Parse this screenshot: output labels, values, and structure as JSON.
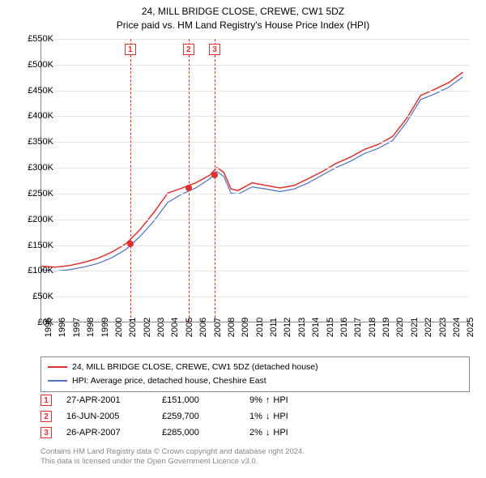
{
  "title_line1": "24, MILL BRIDGE CLOSE, CREWE, CW1 5DZ",
  "title_line2": "Price paid vs. HM Land Registry's House Price Index (HPI)",
  "chart": {
    "type": "line",
    "xlim": [
      1995,
      2025.5
    ],
    "ylim": [
      0,
      550
    ],
    "ytick_step": 50,
    "y_prefix": "£",
    "y_suffix": "K",
    "xticks": [
      1995,
      1996,
      1997,
      1998,
      1999,
      2000,
      2001,
      2002,
      2003,
      2004,
      2005,
      2006,
      2007,
      2008,
      2009,
      2010,
      2011,
      2012,
      2013,
      2014,
      2015,
      2016,
      2017,
      2018,
      2019,
      2020,
      2021,
      2022,
      2023,
      2024,
      2025
    ],
    "grid_color": "#e8e8e8",
    "axis_color": "#888888",
    "background_color": "#ffffff",
    "series": [
      {
        "name": "property",
        "label": "24, MILL BRIDGE CLOSE, CREWE, CW1 5DZ (detached house)",
        "color": "#e03030",
        "line_width": 1.5,
        "data": [
          [
            1995,
            108
          ],
          [
            1996,
            106
          ],
          [
            1997,
            109
          ],
          [
            1998,
            115
          ],
          [
            1999,
            123
          ],
          [
            2000,
            135
          ],
          [
            2001,
            151
          ],
          [
            2002,
            178
          ],
          [
            2003,
            212
          ],
          [
            2004,
            250
          ],
          [
            2005,
            259.7
          ],
          [
            2006,
            270
          ],
          [
            2007,
            285
          ],
          [
            2007.5,
            300
          ],
          [
            2008,
            290
          ],
          [
            2008.5,
            258
          ],
          [
            2009,
            255
          ],
          [
            2010,
            270
          ],
          [
            2011,
            265
          ],
          [
            2012,
            260
          ],
          [
            2013,
            265
          ],
          [
            2014,
            278
          ],
          [
            2015,
            292
          ],
          [
            2016,
            308
          ],
          [
            2017,
            320
          ],
          [
            2018,
            335
          ],
          [
            2019,
            345
          ],
          [
            2020,
            360
          ],
          [
            2021,
            395
          ],
          [
            2022,
            440
          ],
          [
            2023,
            452
          ],
          [
            2024,
            465
          ],
          [
            2025,
            485
          ]
        ]
      },
      {
        "name": "hpi",
        "label": "HPI: Average price, detached house, Cheshire East",
        "color": "#5070c0",
        "line_width": 1.2,
        "data": [
          [
            1995,
            101
          ],
          [
            1996,
            98
          ],
          [
            1997,
            101
          ],
          [
            1998,
            106
          ],
          [
            1999,
            113
          ],
          [
            2000,
            124
          ],
          [
            2001,
            140
          ],
          [
            2002,
            165
          ],
          [
            2003,
            195
          ],
          [
            2004,
            232
          ],
          [
            2005,
            248
          ],
          [
            2006,
            260
          ],
          [
            2007,
            278
          ],
          [
            2007.5,
            292
          ],
          [
            2008,
            282
          ],
          [
            2008.5,
            250
          ],
          [
            2009,
            248
          ],
          [
            2010,
            262
          ],
          [
            2011,
            258
          ],
          [
            2012,
            253
          ],
          [
            2013,
            258
          ],
          [
            2014,
            270
          ],
          [
            2015,
            285
          ],
          [
            2016,
            300
          ],
          [
            2017,
            312
          ],
          [
            2018,
            327
          ],
          [
            2019,
            337
          ],
          [
            2020,
            352
          ],
          [
            2021,
            388
          ],
          [
            2022,
            432
          ],
          [
            2023,
            443
          ],
          [
            2024,
            456
          ],
          [
            2025,
            476
          ]
        ]
      }
    ],
    "markers": [
      {
        "n": "1",
        "x": 2001.32,
        "y": 151
      },
      {
        "n": "2",
        "x": 2005.46,
        "y": 259.7
      },
      {
        "n": "3",
        "x": 2007.32,
        "y": 285
      }
    ],
    "marker_box_color": "#e03030",
    "marker_vline_color": "#e03030",
    "data_point_color": "#e03030"
  },
  "legend": {
    "items": [
      {
        "color": "#e03030",
        "label": "24, MILL BRIDGE CLOSE, CREWE, CW1 5DZ (detached house)"
      },
      {
        "color": "#5070c0",
        "label": "HPI: Average price, detached house, Cheshire East"
      }
    ]
  },
  "events": [
    {
      "n": "1",
      "date": "27-APR-2001",
      "price": "£151,000",
      "pct": "9%",
      "direction": "up",
      "suffix": "HPI"
    },
    {
      "n": "2",
      "date": "16-JUN-2005",
      "price": "£259,700",
      "pct": "1%",
      "direction": "down",
      "suffix": "HPI"
    },
    {
      "n": "3",
      "date": "26-APR-2007",
      "price": "£285,000",
      "pct": "2%",
      "direction": "down",
      "suffix": "HPI"
    }
  ],
  "footer_line1": "Contains HM Land Registry data © Crown copyright and database right 2024.",
  "footer_line2": "This data is licensed under the Open Government Licence v3.0.",
  "label_fontsize": 11,
  "title_fontsize": 12,
  "footer_color": "#888888"
}
